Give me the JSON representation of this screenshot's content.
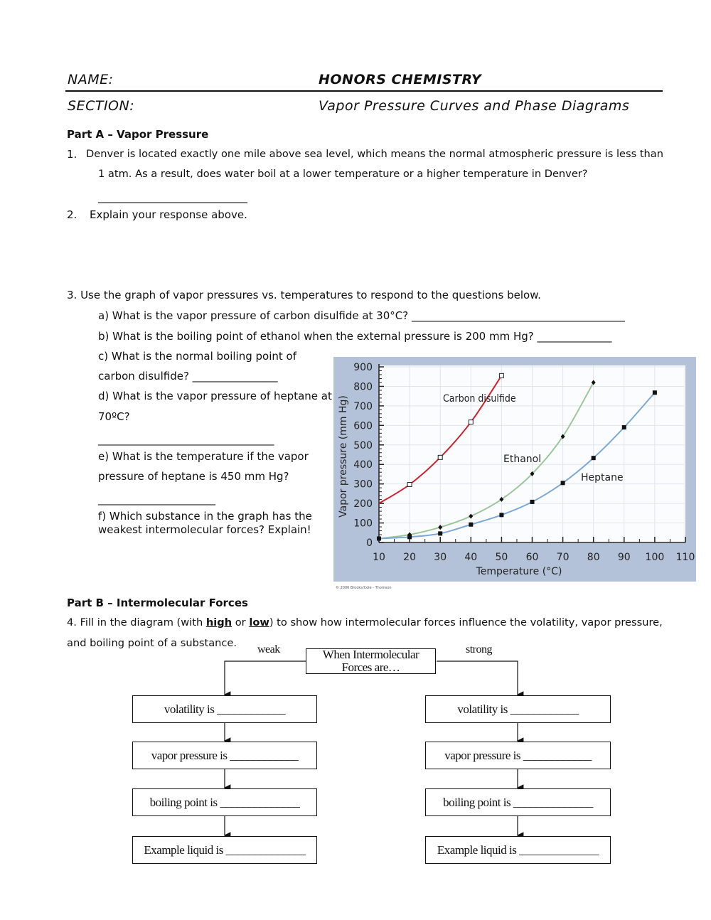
{
  "header": {
    "name_label": "NAME:",
    "course": "HONORS CHEMISTRY",
    "section_label": "SECTION:",
    "subtitle": "Vapor Pressure Curves and Phase Diagrams"
  },
  "partA": {
    "title": "Part A – Vapor Pressure",
    "q1_num": "1.",
    "q1_line1": "Denver is located exactly one mile above sea level, which means the normal atmospheric pressure is less than",
    "q1_line2": "1 atm.  As a result, does water boil at a lower temperature or a higher temperature in Denver?",
    "q1_blank": "____________________________",
    "q2_num": "2.",
    "q2": "Explain your response above.",
    "q3": "3.  Use the graph of vapor pressures vs. temperatures to respond to the questions below.",
    "q3a": "a) What is the vapor pressure of carbon disulfide at 30°C? ________________________________________",
    "q3b": "b) What is the boiling point of ethanol when the external pressure is 200 mm Hg?  ______________",
    "q3c_1": "c) What is the normal boiling point of",
    "q3c_2": "carbon disulfide? ________________",
    "q3d_1": "d) What is the vapor pressure of heptane at",
    "q3d_2": "70ºC?",
    "q3d_blank": "_________________________________",
    "q3e_1": "e) What is the temperature if the vapor",
    "q3e_2": "pressure of heptane is 450 mm Hg?",
    "q3e_blank": "______________________",
    "q3f_1": "f) Which substance in the graph has the",
    "q3f_2": "weakest intermolecular forces? Explain!"
  },
  "chart_data": {
    "type": "line",
    "xlabel": "Temperature (°C)",
    "ylabel": "Vapor pressure (mm Hg)",
    "xlim": [
      10,
      110
    ],
    "ylim": [
      0,
      900
    ],
    "xticks": [
      10,
      20,
      30,
      40,
      50,
      60,
      70,
      80,
      90,
      100,
      110
    ],
    "yticks": [
      0,
      100,
      200,
      300,
      400,
      500,
      600,
      700,
      800,
      900
    ],
    "grid": true,
    "series": [
      {
        "name": "Carbon disulfide",
        "color": "#d0202e",
        "marker": "open-square",
        "x": [
          10,
          20,
          30,
          40,
          50
        ],
        "y": [
          200,
          297,
          436,
          617,
          855
        ]
      },
      {
        "name": "Ethanol",
        "color": "#9cc79a",
        "marker": "diamond",
        "x": [
          10,
          20,
          30,
          40,
          50,
          60,
          70,
          80
        ],
        "y": [
          20,
          40,
          78,
          135,
          221,
          352,
          543,
          820
        ]
      },
      {
        "name": "Heptane",
        "color": "#7ea9d6",
        "marker": "filled-square",
        "x": [
          10,
          20,
          30,
          40,
          50,
          60,
          70,
          80,
          90,
          100
        ],
        "y": [
          20,
          28,
          46,
          92,
          141,
          208,
          305,
          433,
          590,
          768
        ]
      }
    ],
    "copyright": "© 2006 Brooks/Cole - Thomson"
  },
  "partB": {
    "title": "Part B – Intermolecular Forces",
    "q4_pre": "4.  Fill in the diagram (with ",
    "q4_high": "high",
    "q4_or": " or ",
    "q4_low": "low",
    "q4_post": ") to show how intermolecular forces influence the volatility, vapor pressure,",
    "q4_line2": "and boiling point of a substance.",
    "diagram": {
      "top": "When Intermolecular Forces are…",
      "weak": "weak",
      "strong": "strong",
      "left": [
        "volatility is ____________",
        "vapor pressure is ____________",
        "boiling point is ______________",
        "Example liquid is ______________"
      ],
      "right": [
        "volatility is ____________",
        "vapor pressure is ____________",
        "boiling point is ______________",
        "Example liquid is ______________"
      ]
    }
  }
}
